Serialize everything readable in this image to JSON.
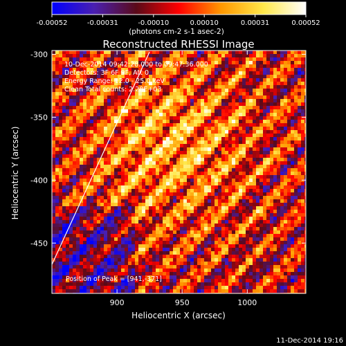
{
  "colorbar": {
    "ticks": [
      "-0.00052",
      "-0.00031",
      "-0.00010",
      "0.00010",
      "0.00031",
      "0.00052"
    ],
    "unit_label": "(photons cm-2 s-1 asec-2)",
    "stops": [
      "#0000ff",
      "#4a1fb0",
      "#5a0a18",
      "#ff0000",
      "#ff9800",
      "#ffe84a",
      "#ffffff"
    ]
  },
  "chart_data": {
    "type": "heatmap",
    "title": "Reconstructed RHESSI Image",
    "xlabel": "Heliocentric X (arcsec)",
    "ylabel": "Heliocentric Y (arcsec)",
    "xlim": [
      850,
      1045
    ],
    "ylim": [
      -490,
      -297
    ],
    "x_ticks": [
      900,
      950,
      1000
    ],
    "y_ticks": [
      -300,
      -350,
      -400,
      -450
    ],
    "x_tick_labels": [
      "900",
      "950",
      "1000"
    ],
    "y_tick_labels": [
      "-300",
      "-350",
      "-400",
      "-450"
    ],
    "value_range": [
      -0.00052,
      0.00052
    ],
    "grid": false,
    "limb_line": [
      [
        850,
        -467
      ],
      [
        925,
        -298
      ]
    ],
    "peak": [
      941,
      -371
    ],
    "annotations": [
      "10-Dec-2014 09:42:28.000 to 09:47:36.000",
      "Detectors: 3F 6F 9F, Att 0",
      "Energy Range: 12.0 - 25.0 keV",
      "Clean  Total counts: 2.28E+03"
    ],
    "peak_label": "Position of Peak = [941,-371]"
  },
  "footer": {
    "timestamp": "11-Dec-2014 19:16"
  }
}
